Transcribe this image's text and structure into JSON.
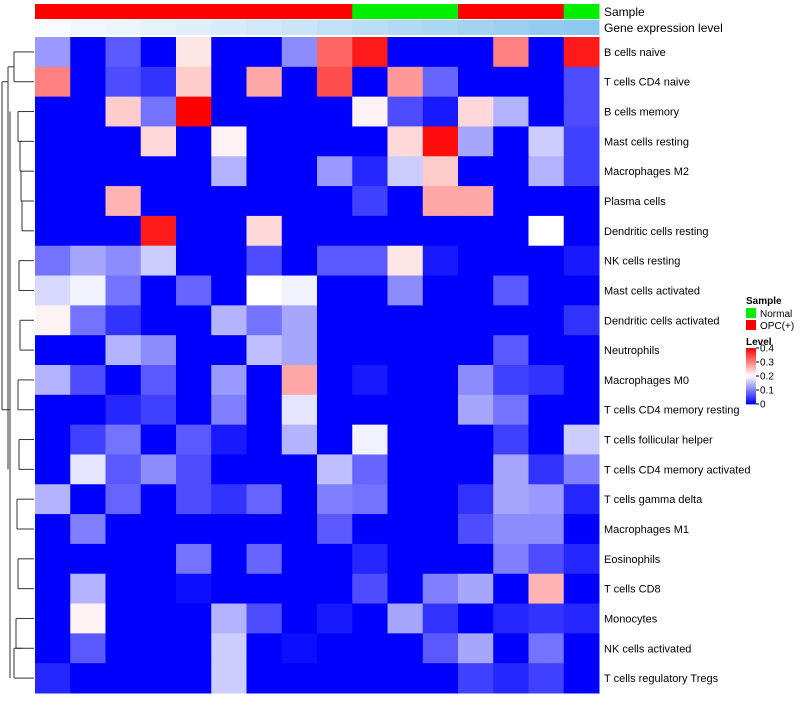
{
  "chart_data": {
    "type": "heatmap",
    "annotation_rows": [
      {
        "label": "Sample",
        "colors": [
          "#ff0000",
          "#ff0000",
          "#ff0000",
          "#ff0000",
          "#ff0000",
          "#ff0000",
          "#ff0000",
          "#ff0000",
          "#ff0000",
          "#00ee00",
          "#00ee00",
          "#00ee00",
          "#ff0000",
          "#ff0000",
          "#ff0000",
          "#00ee00"
        ]
      },
      {
        "label": "Gene expression level",
        "colors": [
          "#f7fbff",
          "#f1f8fd",
          "#ebf5fc",
          "#e4f2fb",
          "#deeffa",
          "#d7ebf9",
          "#d0e8f8",
          "#c9e5f7",
          "#c2e1f6",
          "#bbdef5",
          "#b3daf4",
          "#acd7f3",
          "#a4d3f2",
          "#9ccff1",
          "#94cbf0",
          "#8cc8ef"
        ]
      }
    ],
    "rows": [
      {
        "name": "B cells naive",
        "values": [
          0.12,
          0,
          0.07,
          0,
          0.22,
          0,
          0,
          0.11,
          0.32,
          0.38,
          0,
          0,
          0,
          0.3,
          0,
          0.38
        ]
      },
      {
        "name": "T cells CD4 naive",
        "values": [
          0.3,
          0,
          0.06,
          0.04,
          0.24,
          0,
          0.27,
          0,
          0.34,
          0,
          0.28,
          0.08,
          0,
          0,
          0,
          0.06
        ]
      },
      {
        "name": "B cells memory",
        "values": [
          0,
          0,
          0.24,
          0.09,
          0.4,
          0,
          0,
          0,
          0,
          0.21,
          0.06,
          0.02,
          0.23,
          0.14,
          0,
          0.06
        ]
      },
      {
        "name": "Mast cells resting",
        "values": [
          0,
          0,
          0,
          0.23,
          0,
          0.21,
          0,
          0,
          0,
          0,
          0.23,
          0.39,
          0.13,
          0,
          0.16,
          0.05
        ]
      },
      {
        "name": "Macrophages M2",
        "values": [
          0,
          0,
          0,
          0,
          0,
          0.14,
          0,
          0,
          0.12,
          0.03,
          0.16,
          0.24,
          0,
          0,
          0.14,
          0.05
        ]
      },
      {
        "name": "Plasma cells",
        "values": [
          0,
          0,
          0.26,
          0,
          0,
          0,
          0,
          0,
          0,
          0.05,
          0,
          0.27,
          0.27,
          0,
          0,
          0
        ]
      },
      {
        "name": "Dendritic cells resting",
        "values": [
          0,
          0,
          0,
          0.38,
          0,
          0,
          0.23,
          0,
          0,
          0,
          0,
          0,
          0,
          0,
          0.2,
          0
        ]
      },
      {
        "name": "NK cells resting",
        "values": [
          0.09,
          0.13,
          0.11,
          0.16,
          0,
          0,
          0.06,
          0,
          0.07,
          0.07,
          0.22,
          0.02,
          0,
          0,
          0,
          0.02
        ]
      },
      {
        "name": "Mast cells activated",
        "values": [
          0.17,
          0.19,
          0.09,
          0,
          0.08,
          0,
          0.2,
          0.19,
          0,
          0,
          0.11,
          0,
          0,
          0.07,
          0,
          0
        ]
      },
      {
        "name": "Dendritic cells activated",
        "values": [
          0.21,
          0.09,
          0.04,
          0,
          0,
          0.14,
          0.09,
          0.13,
          0,
          0,
          0,
          0,
          0,
          0,
          0,
          0.04
        ]
      },
      {
        "name": "Neutrophils",
        "values": [
          0,
          0,
          0.14,
          0.11,
          0,
          0,
          0.15,
          0.13,
          0,
          0,
          0,
          0,
          0,
          0.07,
          0,
          0
        ]
      },
      {
        "name": "Macrophages M0",
        "values": [
          0.14,
          0.06,
          0,
          0.07,
          0,
          0.12,
          0,
          0.27,
          0,
          0.02,
          0,
          0,
          0.11,
          0.05,
          0.04,
          0
        ]
      },
      {
        "name": "T cells CD4 memory resting",
        "values": [
          0,
          0,
          0.03,
          0.05,
          0,
          0.1,
          0,
          0.18,
          0,
          0,
          0,
          0,
          0.13,
          0.09,
          0,
          0
        ]
      },
      {
        "name": "T cells follicular helper",
        "values": [
          0,
          0.05,
          0.09,
          0,
          0.07,
          0.02,
          0,
          0.14,
          0,
          0.19,
          0,
          0,
          0,
          0.05,
          0,
          0.16
        ]
      },
      {
        "name": "T cells CD4 memory activated",
        "values": [
          0,
          0.18,
          0.07,
          0.11,
          0.06,
          0,
          0,
          0,
          0.15,
          0.08,
          0,
          0,
          0,
          0.13,
          0.04,
          0.1
        ]
      },
      {
        "name": "T cells gamma delta",
        "values": [
          0.14,
          0,
          0.08,
          0,
          0.06,
          0.04,
          0.08,
          0,
          0.1,
          0.09,
          0,
          0,
          0.04,
          0.13,
          0.12,
          0.03
        ]
      },
      {
        "name": "Macrophages M1",
        "values": [
          0,
          0.1,
          0,
          0,
          0,
          0,
          0,
          0,
          0.07,
          0,
          0,
          0,
          0.06,
          0.11,
          0.11,
          0
        ]
      },
      {
        "name": "Eosinophils",
        "values": [
          0,
          0,
          0,
          0,
          0.09,
          0,
          0.08,
          0,
          0,
          0.03,
          0,
          0,
          0,
          0.1,
          0.06,
          0.03
        ]
      },
      {
        "name": "T cells CD8",
        "values": [
          0,
          0.14,
          0,
          0,
          0.01,
          0,
          0,
          0,
          0,
          0.06,
          0,
          0.1,
          0.13,
          0,
          0.26,
          0
        ]
      },
      {
        "name": "Monocytes",
        "values": [
          0,
          0.21,
          0,
          0,
          0,
          0.14,
          0.06,
          0,
          0.02,
          0,
          0.13,
          0.04,
          0,
          0.03,
          0.04,
          0.03
        ]
      },
      {
        "name": "NK cells activated",
        "values": [
          0,
          0.07,
          0,
          0,
          0,
          0.16,
          0,
          0.01,
          0,
          0,
          0,
          0.07,
          0.13,
          0,
          0.09,
          0
        ]
      },
      {
        "name": "T cells regulatory  Tregs",
        "values": [
          0.03,
          0,
          0,
          0,
          0,
          0.16,
          0,
          0,
          0,
          0,
          0,
          0,
          0.05,
          0.03,
          0.05,
          0
        ]
      }
    ],
    "value_range": [
      0,
      0.4
    ],
    "color_scale": {
      "low": "#0000ff",
      "mid": "#ffffff",
      "high": "#ff0000",
      "mid_value": 0.2
    },
    "legend_sample": {
      "title": "Sample",
      "items": [
        {
          "label": "Normal",
          "color": "#00ee00"
        },
        {
          "label": "OPC(+)",
          "color": "#ff0000"
        }
      ]
    },
    "legend_level": {
      "title": "Level",
      "ticks": [
        {
          "value": 0.4,
          "label": "0.4"
        },
        {
          "value": 0.3,
          "label": "0.3"
        },
        {
          "value": 0.2,
          "label": "0.2"
        },
        {
          "value": 0.1,
          "label": "0.1"
        },
        {
          "value": 0,
          "label": "0"
        }
      ]
    }
  }
}
